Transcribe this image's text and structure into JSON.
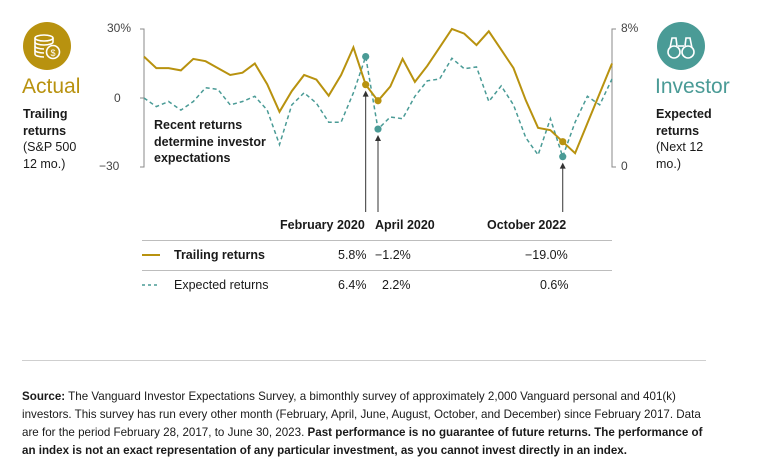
{
  "colors": {
    "actual": "#b8920f",
    "investor": "#4a9b96",
    "text": "#1a1a1a",
    "rule": "#bdbdbd"
  },
  "left_panel": {
    "icon": "money-stack-dollar-icon",
    "label": "Actual",
    "sub_bold": "Trailing returns",
    "sub_line1": "Trailing",
    "sub_line2": "returns",
    "sub_line3": "(S&P 500",
    "sub_line4": "12 mo.)"
  },
  "right_panel": {
    "icon": "binoculars-icon",
    "label": "Investor",
    "sub_line1": "Expected",
    "sub_line2": "returns",
    "sub_line3": "(Next 12",
    "sub_line4": "mo.)"
  },
  "callout": "Recent returns determine investor expectations",
  "chart_data": {
    "type": "line",
    "left_axis": {
      "ticks": [
        "30%",
        "0",
        "−30"
      ],
      "range": [
        -30,
        30
      ]
    },
    "right_axis": {
      "ticks": [
        "8%",
        "0"
      ],
      "range": [
        0,
        8
      ]
    },
    "series": [
      {
        "name": "Trailing returns",
        "axis": "left",
        "values": [
          18,
          13,
          13,
          12,
          17,
          16,
          13,
          10,
          11,
          15,
          6,
          -6,
          3,
          10,
          8,
          1,
          10,
          22,
          5.8,
          -1.2,
          5,
          17,
          7,
          14,
          22,
          30,
          28,
          23,
          29,
          21,
          13,
          -1,
          -13,
          -14,
          -19,
          -24,
          -11,
          2,
          15
        ],
        "highlights": [
          {
            "label": "February 2020",
            "value": "5.8%"
          },
          {
            "label": "April 2020",
            "value": "−1.2%"
          },
          {
            "label": "October 2022",
            "value": "−19.0%"
          }
        ]
      },
      {
        "name": "Expected returns",
        "axis": "right",
        "values": [
          4.0,
          3.5,
          3.8,
          3.3,
          3.8,
          4.6,
          4.5,
          3.6,
          3.8,
          4.1,
          3.3,
          1.3,
          3.6,
          4.3,
          3.7,
          2.6,
          2.6,
          4.3,
          6.4,
          2.2,
          2.9,
          2.8,
          4.1,
          5.0,
          5.1,
          6.3,
          5.7,
          5.8,
          3.8,
          4.7,
          3.6,
          1.7,
          0.7,
          2.8,
          0.6,
          2.6,
          4.1,
          3.6,
          5.1
        ],
        "highlights": [
          {
            "label": "February 2020",
            "value": "6.4%"
          },
          {
            "label": "April 2020",
            "value": "2.2%"
          },
          {
            "label": "October 2022",
            "value": "0.6%"
          }
        ]
      }
    ]
  },
  "table": {
    "headers": [
      "February 2020",
      "April 2020",
      "October 2022"
    ],
    "rows": [
      {
        "name": "Trailing returns",
        "values": [
          "5.8%",
          "−1.2%",
          "−19.0%"
        ]
      },
      {
        "name": "Expected returns",
        "values": [
          "6.4%",
          "2.2%",
          "0.6%"
        ]
      }
    ]
  },
  "footnote": {
    "source_label": "Source:",
    "source_text": " The Vanguard Investor Expectations Survey, a bimonthly survey of approximately 2,000 Vanguard personal and 401(k) investors. This survey has run every other month (February, April, June, August, October, and December) since February 2017. Data are for the period February 28, 2017, to June 30, 2023. ",
    "disclaimer": "Past performance is no guarantee of future returns. The performance of an index is not an exact representation of any particular investment, as you cannot invest directly in an index."
  }
}
